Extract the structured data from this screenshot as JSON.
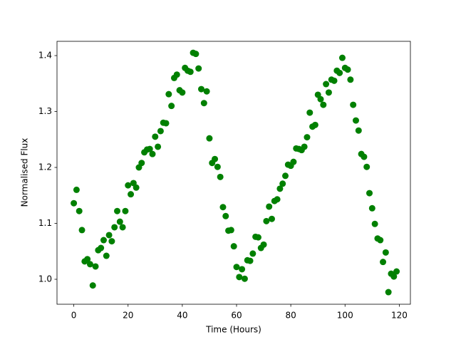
{
  "chart_data": {
    "type": "scatter",
    "xlabel": "Time (Hours)",
    "ylabel": "Normalised Flux",
    "color": "#008000",
    "x": [
      0,
      1,
      2,
      3,
      4,
      5,
      6,
      7,
      8,
      9,
      10,
      11,
      12,
      13,
      14,
      15,
      16,
      17,
      18,
      19,
      20,
      21,
      22,
      23,
      24,
      25,
      26,
      27,
      28,
      29,
      30,
      31,
      32,
      33,
      34,
      35,
      36,
      37,
      38,
      39,
      40,
      41,
      42,
      43,
      44,
      45,
      46,
      47,
      48,
      49,
      50,
      51,
      52,
      53,
      54,
      55,
      56,
      57,
      58,
      59,
      60,
      61,
      62,
      63,
      64,
      65,
      66,
      67,
      68,
      69,
      70,
      71,
      72,
      73,
      74,
      75,
      76,
      77,
      78,
      79,
      80,
      81,
      82,
      83,
      84,
      85,
      86,
      87,
      88,
      89,
      90,
      91,
      92,
      93,
      94,
      95,
      96,
      97,
      98,
      99,
      100,
      101,
      102,
      103,
      104,
      105,
      106,
      107,
      108,
      109,
      110,
      111,
      112,
      113,
      114,
      115,
      116,
      117,
      118,
      119
    ],
    "values": [
      1.136,
      1.16,
      1.122,
      1.088,
      1.032,
      1.036,
      1.027,
      0.989,
      1.023,
      1.052,
      1.056,
      1.07,
      1.042,
      1.079,
      1.068,
      1.093,
      1.122,
      1.103,
      1.093,
      1.122,
      1.168,
      1.152,
      1.172,
      1.164,
      1.2,
      1.208,
      1.227,
      1.232,
      1.233,
      1.224,
      1.255,
      1.237,
      1.265,
      1.28,
      1.279,
      1.331,
      1.31,
      1.36,
      1.366,
      1.338,
      1.334,
      1.378,
      1.373,
      1.371,
      1.405,
      1.403,
      1.377,
      1.34,
      1.315,
      1.336,
      1.252,
      1.208,
      1.215,
      1.201,
      1.183,
      1.129,
      1.113,
      1.087,
      1.088,
      1.059,
      1.022,
      1.004,
      1.018,
      1.001,
      1.034,
      1.033,
      1.046,
      1.076,
      1.075,
      1.056,
      1.062,
      1.104,
      1.13,
      1.108,
      1.14,
      1.143,
      1.162,
      1.171,
      1.185,
      1.205,
      1.203,
      1.21,
      1.234,
      1.233,
      1.231,
      1.237,
      1.254,
      1.298,
      1.273,
      1.276,
      1.33,
      1.322,
      1.312,
      1.349,
      1.334,
      1.357,
      1.355,
      1.373,
      1.369,
      1.396,
      1.378,
      1.375,
      1.357,
      1.312,
      1.284,
      1.266,
      1.224,
      1.219,
      1.201,
      1.154,
      1.127,
      1.099,
      1.073,
      1.07,
      1.031,
      1.048,
      0.977,
      1.01,
      1.005,
      1.014
    ],
    "xlim": [
      -6.2,
      124.1
    ],
    "xticks": [
      0,
      20,
      40,
      60,
      80,
      100,
      120
    ],
    "ylim": [
      0.9554,
      1.4255
    ],
    "yticks": [
      {
        "value": 1,
        "label": "1.0"
      },
      {
        "value": 1.1,
        "label": "1.1"
      },
      {
        "value": 1.2,
        "label": "1.2"
      },
      {
        "value": 1.3,
        "label": "1.3"
      },
      {
        "value": 1.4,
        "label": "1.4"
      }
    ],
    "grid": false
  }
}
